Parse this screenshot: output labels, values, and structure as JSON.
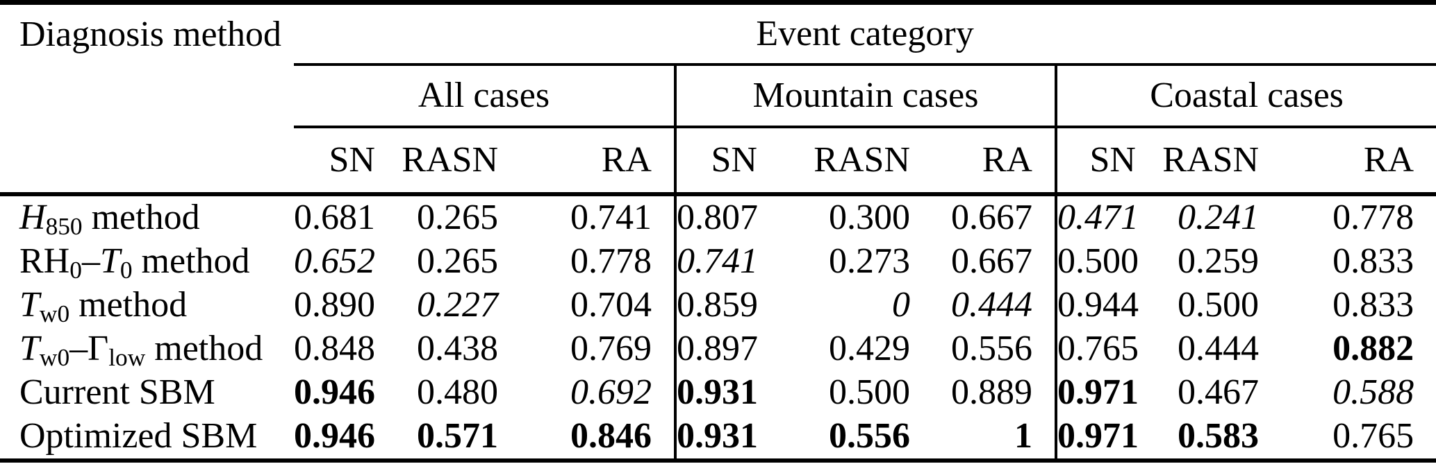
{
  "colors": {
    "background": "#ffffff",
    "text": "#000000",
    "rules": "#000000"
  },
  "table": {
    "corner_header": "Diagnosis method",
    "span_header": "Event category",
    "groups": [
      "All cases",
      "Mountain cases",
      "Coastal cases"
    ],
    "metric_headers": [
      "SN",
      "RASN",
      "RA",
      "SN",
      "RASN",
      "RA",
      "SN",
      "RASN",
      "RA"
    ],
    "rows": [
      {
        "label": [
          {
            "t": "H",
            "it": true
          },
          {
            "t": "850",
            "sub": true
          },
          {
            "t": " method"
          }
        ],
        "values": [
          {
            "v": "0.681",
            "s": "n"
          },
          {
            "v": "0.265",
            "s": "n"
          },
          {
            "v": "0.741",
            "s": "n"
          },
          {
            "v": "0.807",
            "s": "n"
          },
          {
            "v": "0.300",
            "s": "n"
          },
          {
            "v": "0.667",
            "s": "n"
          },
          {
            "v": "0.471",
            "s": "i"
          },
          {
            "v": "0.241",
            "s": "i"
          },
          {
            "v": "0.778",
            "s": "n"
          }
        ]
      },
      {
        "label": [
          {
            "t": "RH"
          },
          {
            "t": "0",
            "sub": true
          },
          {
            "t": "–"
          },
          {
            "t": "T",
            "it": true
          },
          {
            "t": "0",
            "sub": true
          },
          {
            "t": " method"
          }
        ],
        "values": [
          {
            "v": "0.652",
            "s": "i"
          },
          {
            "v": "0.265",
            "s": "n"
          },
          {
            "v": "0.778",
            "s": "n"
          },
          {
            "v": "0.741",
            "s": "i"
          },
          {
            "v": "0.273",
            "s": "n"
          },
          {
            "v": "0.667",
            "s": "n"
          },
          {
            "v": "0.500",
            "s": "n"
          },
          {
            "v": "0.259",
            "s": "n"
          },
          {
            "v": "0.833",
            "s": "n"
          }
        ]
      },
      {
        "label": [
          {
            "t": "T",
            "it": true
          },
          {
            "t": "w0",
            "sub": true
          },
          {
            "t": " method"
          }
        ],
        "values": [
          {
            "v": "0.890",
            "s": "n"
          },
          {
            "v": "0.227",
            "s": "i"
          },
          {
            "v": "0.704",
            "s": "n"
          },
          {
            "v": "0.859",
            "s": "n"
          },
          {
            "v": "0",
            "s": "i"
          },
          {
            "v": "0.444",
            "s": "i"
          },
          {
            "v": "0.944",
            "s": "n"
          },
          {
            "v": "0.500",
            "s": "n"
          },
          {
            "v": "0.833",
            "s": "n"
          }
        ]
      },
      {
        "label": [
          {
            "t": "T",
            "it": true
          },
          {
            "t": "w0",
            "sub": true
          },
          {
            "t": "–Γ"
          },
          {
            "t": "low",
            "sub": true
          },
          {
            "t": " method"
          }
        ],
        "values": [
          {
            "v": "0.848",
            "s": "n"
          },
          {
            "v": "0.438",
            "s": "n"
          },
          {
            "v": "0.769",
            "s": "n"
          },
          {
            "v": "0.897",
            "s": "n"
          },
          {
            "v": "0.429",
            "s": "n"
          },
          {
            "v": "0.556",
            "s": "n"
          },
          {
            "v": "0.765",
            "s": "n"
          },
          {
            "v": "0.444",
            "s": "n"
          },
          {
            "v": "0.882",
            "s": "b"
          }
        ]
      },
      {
        "label": [
          {
            "t": "Current SBM"
          }
        ],
        "values": [
          {
            "v": "0.946",
            "s": "b"
          },
          {
            "v": "0.480",
            "s": "n"
          },
          {
            "v": "0.692",
            "s": "i"
          },
          {
            "v": "0.931",
            "s": "b"
          },
          {
            "v": "0.500",
            "s": "n"
          },
          {
            "v": "0.889",
            "s": "n"
          },
          {
            "v": "0.971",
            "s": "b"
          },
          {
            "v": "0.467",
            "s": "n"
          },
          {
            "v": "0.588",
            "s": "i"
          }
        ]
      },
      {
        "label": [
          {
            "t": "Optimized SBM"
          }
        ],
        "values": [
          {
            "v": "0.946",
            "s": "b"
          },
          {
            "v": "0.571",
            "s": "b"
          },
          {
            "v": "0.846",
            "s": "b"
          },
          {
            "v": "0.931",
            "s": "b"
          },
          {
            "v": "0.556",
            "s": "b"
          },
          {
            "v": "1",
            "s": "b"
          },
          {
            "v": "0.971",
            "s": "b"
          },
          {
            "v": "0.583",
            "s": "b"
          },
          {
            "v": "0.765",
            "s": "n"
          }
        ]
      }
    ]
  }
}
